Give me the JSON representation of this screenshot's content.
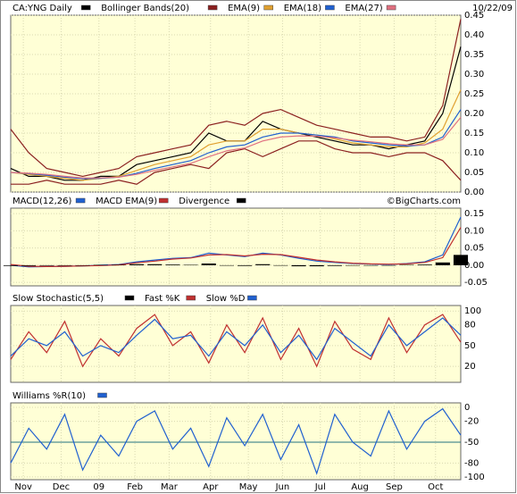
{
  "chart_data": [
    {
      "type": "line",
      "date_label": "10/22/09",
      "xlim": [
        0,
        25
      ],
      "ylim": [
        0,
        0.45
      ],
      "grid": true,
      "yticks": [
        0.45,
        {
          "value": 0.4,
          "label": "0.40"
        },
        0.35,
        {
          "value": 0.3,
          "label": "0.30"
        },
        0.25,
        {
          "value": 0.2,
          "label": "0.20"
        },
        0.15,
        {
          "value": 0.1,
          "label": "0.10"
        },
        0.05,
        {
          "value": 0,
          "label": "0.00"
        }
      ],
      "series": [
        {
          "name": "CA:YNG Daily",
          "color": "#000000",
          "values": [
            0.06,
            0.04,
            0.04,
            0.03,
            0.03,
            0.04,
            0.04,
            0.07,
            0.08,
            0.09,
            0.1,
            0.15,
            0.13,
            0.13,
            0.18,
            0.16,
            0.15,
            0.14,
            0.13,
            0.12,
            0.12,
            0.11,
            0.12,
            0.13,
            0.2,
            0.37
          ]
        },
        {
          "name": "Bollinger Bands(20)",
          "color": "#8b2020",
          "upper": [
            0.16,
            0.1,
            0.06,
            0.05,
            0.04,
            0.05,
            0.06,
            0.09,
            0.1,
            0.11,
            0.12,
            0.17,
            0.18,
            0.17,
            0.2,
            0.21,
            0.19,
            0.17,
            0.16,
            0.15,
            0.14,
            0.14,
            0.13,
            0.14,
            0.22,
            0.44
          ],
          "lower": [
            0.02,
            0.02,
            0.03,
            0.02,
            0.02,
            0.02,
            0.03,
            0.02,
            0.05,
            0.06,
            0.07,
            0.06,
            0.1,
            0.11,
            0.09,
            0.11,
            0.13,
            0.13,
            0.11,
            0.1,
            0.1,
            0.09,
            0.1,
            0.1,
            0.08,
            0.03
          ]
        },
        {
          "name": "EMA(9)",
          "color": "#e0a030",
          "values": [
            0.05,
            0.045,
            0.04,
            0.035,
            0.03,
            0.035,
            0.04,
            0.055,
            0.07,
            0.08,
            0.09,
            0.12,
            0.13,
            0.13,
            0.16,
            0.16,
            0.15,
            0.145,
            0.135,
            0.125,
            0.12,
            0.115,
            0.115,
            0.125,
            0.16,
            0.26
          ]
        },
        {
          "name": "EMA(18)",
          "color": "#2060d0",
          "values": [
            0.05,
            0.047,
            0.043,
            0.038,
            0.034,
            0.035,
            0.038,
            0.048,
            0.06,
            0.07,
            0.08,
            0.1,
            0.115,
            0.12,
            0.14,
            0.15,
            0.15,
            0.145,
            0.14,
            0.13,
            0.125,
            0.12,
            0.117,
            0.12,
            0.14,
            0.21
          ]
        },
        {
          "name": "EMA(27)",
          "color": "#e07080",
          "values": [
            0.05,
            0.048,
            0.045,
            0.04,
            0.036,
            0.036,
            0.038,
            0.045,
            0.055,
            0.064,
            0.073,
            0.09,
            0.105,
            0.112,
            0.13,
            0.14,
            0.143,
            0.142,
            0.138,
            0.132,
            0.128,
            0.123,
            0.12,
            0.12,
            0.134,
            0.19
          ]
        }
      ]
    },
    {
      "type": "line",
      "source": "©BigCharts.com",
      "xlim": [
        0,
        25
      ],
      "ylim": [
        -0.06,
        0.166
      ],
      "grid": true,
      "yticks": [
        0.15,
        {
          "value": 0.1,
          "label": "0.10"
        },
        0.05,
        {
          "value": 0,
          "label": "0.00"
        },
        -0.05
      ],
      "series": [
        {
          "name": "MACD(12,26)",
          "color": "#2060d0",
          "values": [
            0.0,
            -0.005,
            -0.004,
            -0.003,
            -0.002,
            0.0,
            0.002,
            0.01,
            0.015,
            0.02,
            0.022,
            0.035,
            0.03,
            0.025,
            0.035,
            0.03,
            0.02,
            0.012,
            0.008,
            0.005,
            0.003,
            0.002,
            0.005,
            0.01,
            0.03,
            0.14
          ]
        },
        {
          "name": "MACD EMA(9)",
          "color": "#c03030",
          "values": [
            0.002,
            -0.003,
            -0.004,
            -0.003,
            -0.002,
            -0.001,
            0.001,
            0.007,
            0.012,
            0.018,
            0.021,
            0.03,
            0.031,
            0.027,
            0.032,
            0.031,
            0.023,
            0.015,
            0.01,
            0.006,
            0.004,
            0.003,
            0.004,
            0.008,
            0.022,
            0.11
          ]
        },
        {
          "name": "Divergence",
          "color": "#000000",
          "kind": "bar",
          "values": [
            -0.002,
            -0.002,
            0,
            0,
            0,
            0.001,
            0.001,
            0.003,
            0.003,
            0.002,
            0.001,
            0.005,
            -0.001,
            -0.002,
            0.003,
            -0.001,
            -0.003,
            -0.003,
            -0.002,
            -0.001,
            -0.001,
            -0.001,
            0.001,
            0.002,
            0.008,
            0.03
          ]
        }
      ]
    },
    {
      "type": "line",
      "xlim": [
        0,
        25
      ],
      "ylim": [
        -3,
        108
      ],
      "grid": true,
      "yticks": [
        100,
        80,
        50,
        20
      ],
      "series": [
        {
          "name": "Slow Stochastic(5,5)",
          "color": "#000000",
          "legend_only": true
        },
        {
          "name": "Fast %K",
          "color": "#c03030",
          "values": [
            30,
            70,
            40,
            85,
            20,
            60,
            35,
            75,
            95,
            50,
            70,
            25,
            80,
            40,
            90,
            30,
            75,
            20,
            85,
            45,
            30,
            90,
            40,
            80,
            95,
            55
          ]
        },
        {
          "name": "Slow %D",
          "color": "#2060d0",
          "values": [
            35,
            60,
            50,
            70,
            35,
            50,
            40,
            65,
            88,
            60,
            65,
            35,
            70,
            50,
            80,
            40,
            65,
            30,
            75,
            55,
            35,
            80,
            50,
            70,
            90,
            65
          ]
        }
      ]
    },
    {
      "type": "line",
      "xlim": [
        0,
        25
      ],
      "ylim": [
        -104,
        6.5
      ],
      "grid": true,
      "ref_line": -50,
      "yticks": [
        0,
        -20,
        -50,
        -80,
        -100
      ],
      "xticks": [
        {
          "value": 0.7,
          "label": "Nov"
        },
        {
          "value": 2.8,
          "label": "Dec"
        },
        {
          "value": 4.9,
          "label": "09"
        },
        {
          "value": 6.9,
          "label": "Feb"
        },
        {
          "value": 8.8,
          "label": "Mar"
        },
        {
          "value": 11.1,
          "label": "Apr"
        },
        {
          "value": 13.2,
          "label": "May"
        },
        {
          "value": 15.1,
          "label": "Jun"
        },
        {
          "value": 17.2,
          "label": "Jul"
        },
        {
          "value": 19.4,
          "label": "Aug"
        },
        {
          "value": 21.3,
          "label": "Sep"
        },
        {
          "value": 23.6,
          "label": "Oct"
        }
      ],
      "series": [
        {
          "name": "Williams %R(10)",
          "color": "#2060d0",
          "values": [
            -80,
            -30,
            -60,
            -10,
            -90,
            -40,
            -70,
            -20,
            -5,
            -60,
            -30,
            -85,
            -15,
            -55,
            -10,
            -75,
            -25,
            -95,
            -10,
            -50,
            -70,
            -5,
            -60,
            -20,
            -2,
            -40
          ]
        }
      ]
    }
  ]
}
